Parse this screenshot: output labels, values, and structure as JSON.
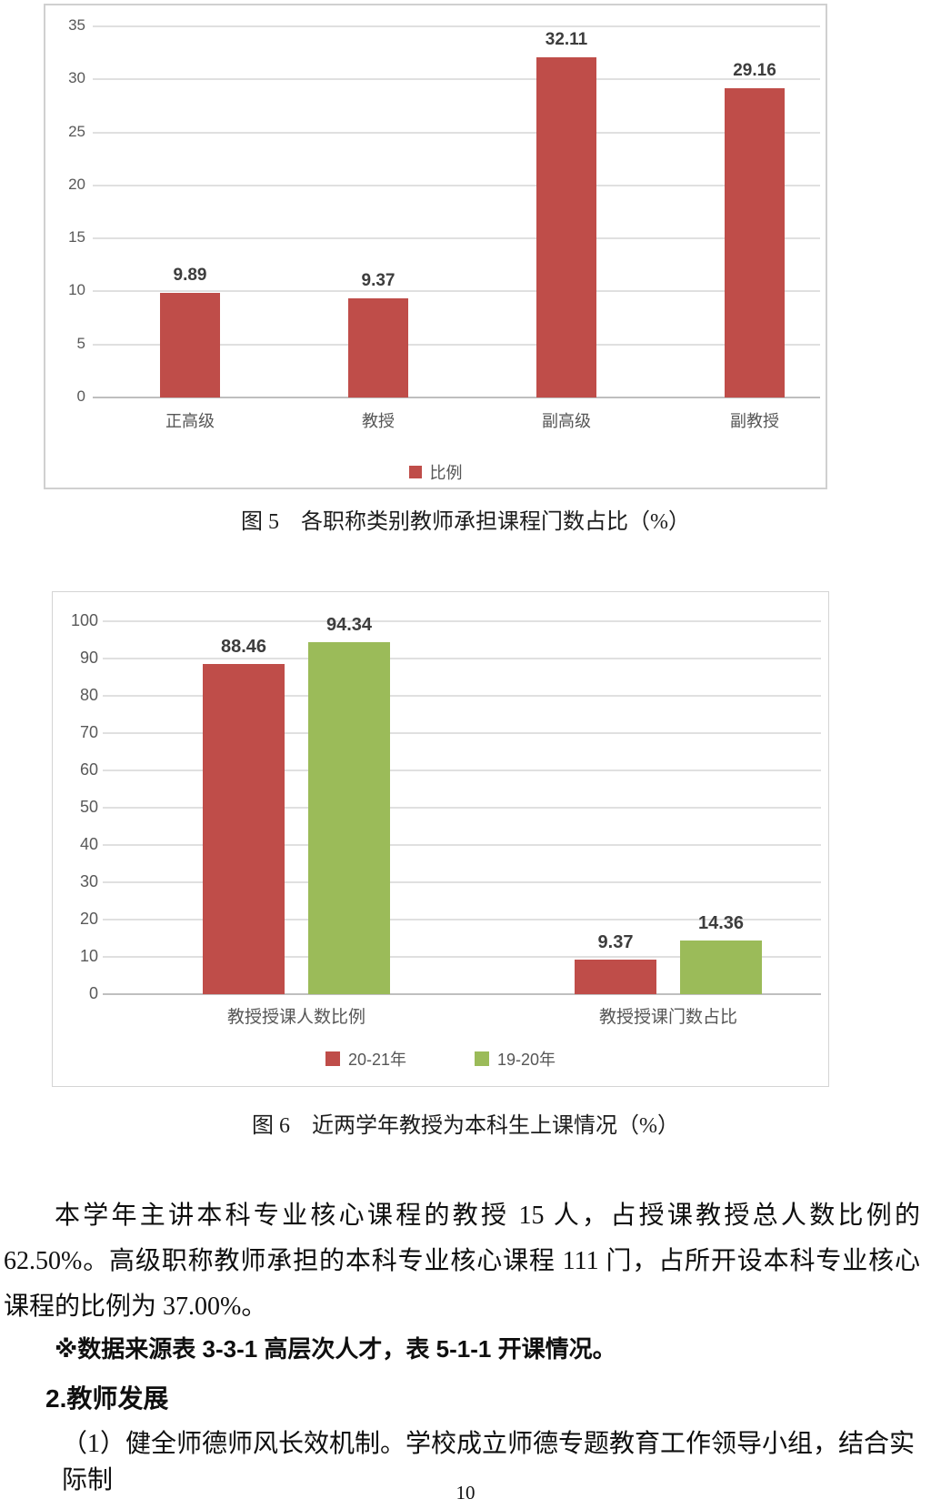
{
  "page": {
    "number": "10"
  },
  "colors": {
    "series_red": "#bf4d49",
    "series_green": "#9bbb59",
    "grid": "#e0e0e0",
    "axis_line": "#bfbfbf",
    "axis_text": "#595959",
    "label_text": "#3d3d3d"
  },
  "paragraphs": {
    "p1": "本学年主讲本科专业核心课程的教授 15 人，占授课教授总人数比例的 62.50%。高级职称教师承担的本科专业核心课程 111 门，占所开设本科专业核心课程的比例为 37.00%。",
    "note": "※数据来源表 3-3-1 高层次人才，表 5-1-1 开课情况。",
    "heading2": "2.教师发展",
    "p2": "（1）健全师德师风长效机制。学校成立师德专题教育工作领导小组，结合实际制"
  },
  "chart_data": [
    {
      "id": "fig5",
      "type": "bar",
      "title": "图 5　各职称类别教师承担课程门数占比（%）",
      "categories": [
        "正高级",
        "教授",
        "副高级",
        "副教授"
      ],
      "series": [
        {
          "name": "比例",
          "color_key": "series_red",
          "values": [
            9.89,
            9.37,
            32.11,
            29.16
          ]
        }
      ],
      "data_labels": [
        "9.89",
        "9.37",
        "32.11",
        "29.16"
      ],
      "xlabel": "",
      "ylabel": "",
      "ylim": [
        0,
        35
      ],
      "yticks": [
        0,
        5,
        10,
        15,
        20,
        25,
        30,
        35
      ],
      "grid": true,
      "legend_position": "bottom"
    },
    {
      "id": "fig6",
      "type": "bar",
      "title": "图 6　近两学年教授为本科生上课情况（%）",
      "categories": [
        "教授授课人数比例",
        "教授授课门数占比"
      ],
      "series": [
        {
          "name": "20-21年",
          "color_key": "series_red",
          "values": [
            88.46,
            9.37
          ]
        },
        {
          "name": "19-20年",
          "color_key": "series_green",
          "values": [
            94.34,
            14.36
          ]
        }
      ],
      "data_labels": [
        [
          "88.46",
          "9.37"
        ],
        [
          "94.34",
          "14.36"
        ]
      ],
      "xlabel": "",
      "ylabel": "",
      "ylim": [
        0,
        100
      ],
      "yticks": [
        0,
        10,
        20,
        30,
        40,
        50,
        60,
        70,
        80,
        90,
        100
      ],
      "grid": true,
      "legend_position": "bottom"
    }
  ]
}
